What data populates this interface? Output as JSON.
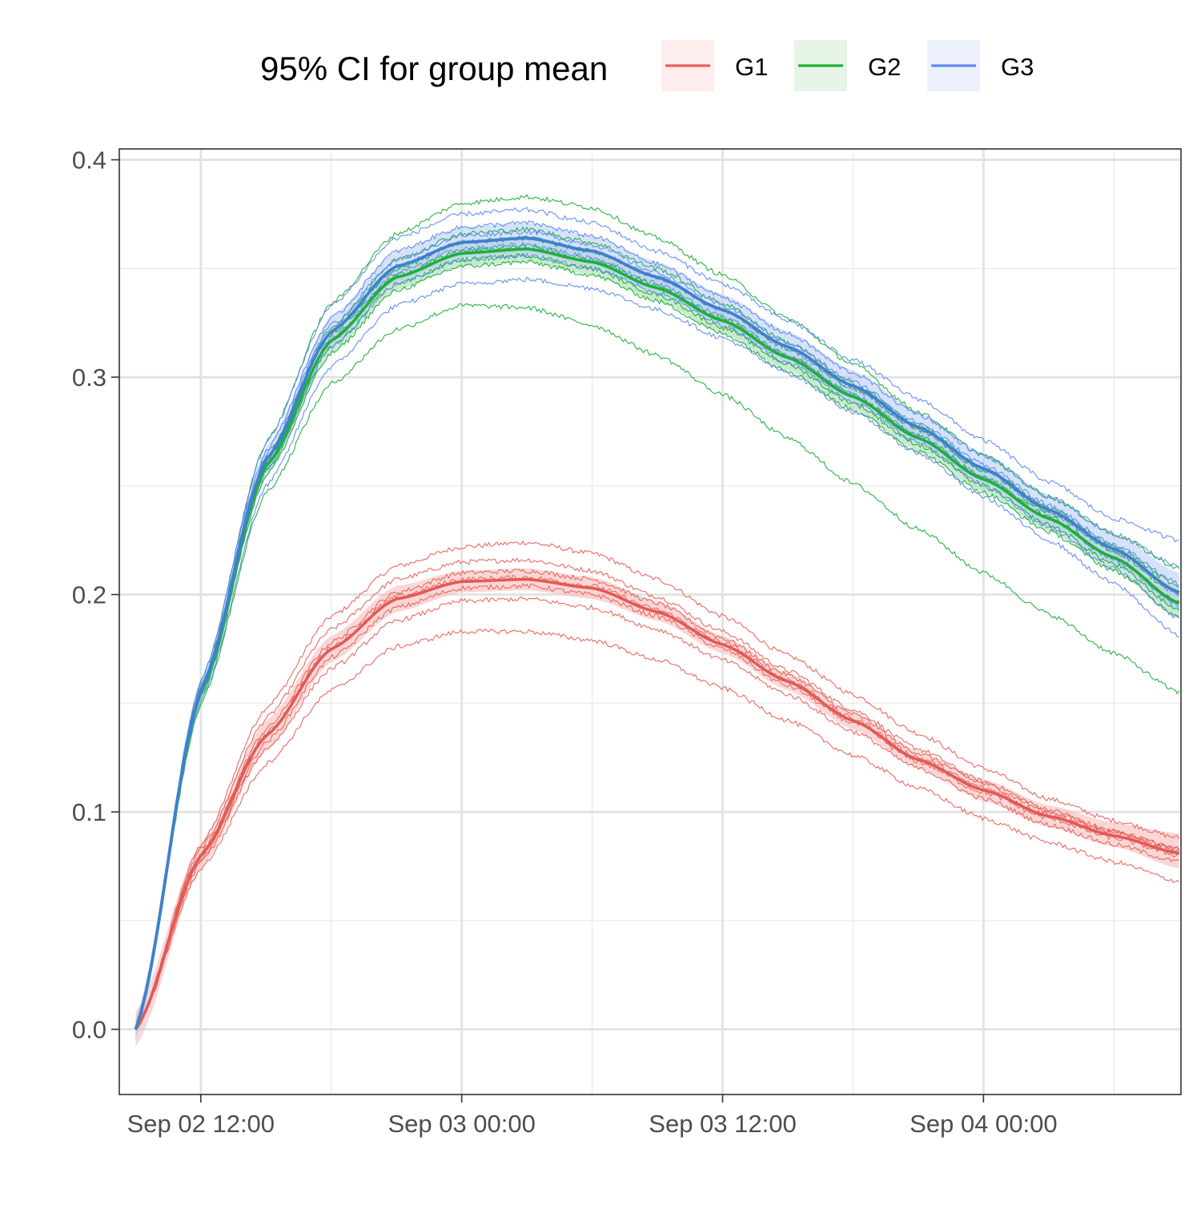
{
  "chart_data": {
    "type": "line",
    "title": "",
    "xlabel": "",
    "ylabel": "",
    "legend": {
      "title": "95% CI for group mean",
      "position": "top",
      "entries": [
        "G1",
        "G2",
        "G3"
      ]
    },
    "colors": {
      "G1": "#E8625B",
      "G2": "#1FAF3A",
      "G3": "#5E8BF0",
      "G1_band": "#F6B7B4",
      "G2_band": "#9FD9A8",
      "G3_band": "#B5C9F7",
      "G1_mean": "#E15A56",
      "G3_mean": "#3F7FD0"
    },
    "x_axis": {
      "type": "datetime",
      "range": [
        "2024-09-02 08:15",
        "2024-09-04 09:05"
      ],
      "tick_labels": [
        "Sep 02 12:00",
        "Sep 03 00:00",
        "Sep 03 12:00",
        "Sep 04 00:00"
      ],
      "tick_values": [
        "2024-09-02 12:00",
        "2024-09-03 00:00",
        "2024-09-03 12:00",
        "2024-09-04 00:00"
      ],
      "minor_ticks": [
        "2024-09-02 18:00",
        "2024-09-03 06:00",
        "2024-09-03 18:00",
        "2024-09-04 06:00"
      ]
    },
    "y_axis": {
      "range": [
        -0.03,
        0.405
      ],
      "tick_values": [
        0.0,
        0.1,
        0.2,
        0.3,
        0.4
      ],
      "tick_labels": [
        "0.0",
        "0.1",
        "0.2",
        "0.3",
        "0.4"
      ],
      "minor_ticks": [
        0.05,
        0.15,
        0.25,
        0.35
      ]
    },
    "grid": true,
    "x": [
      "2024-09-02 09:00",
      "2024-09-02 12:00",
      "2024-09-02 15:00",
      "2024-09-02 18:00",
      "2024-09-02 21:00",
      "2024-09-03 00:00",
      "2024-09-03 03:00",
      "2024-09-03 06:00",
      "2024-09-03 09:00",
      "2024-09-03 12:00",
      "2024-09-03 15:00",
      "2024-09-03 18:00",
      "2024-09-03 21:00",
      "2024-09-04 00:00",
      "2024-09-04 03:00",
      "2024-09-04 06:00",
      "2024-09-04 09:00"
    ],
    "series": [
      {
        "name": "G1",
        "mean": [
          0.0,
          0.08,
          0.135,
          0.175,
          0.198,
          0.206,
          0.207,
          0.203,
          0.192,
          0.177,
          0.16,
          0.142,
          0.124,
          0.11,
          0.098,
          0.089,
          0.081
        ],
        "ci_lower": [
          -0.008,
          0.074,
          0.128,
          0.169,
          0.192,
          0.201,
          0.202,
          0.198,
          0.188,
          0.173,
          0.156,
          0.138,
          0.12,
          0.105,
          0.093,
          0.084,
          0.074
        ],
        "ci_upper": [
          0.008,
          0.086,
          0.142,
          0.181,
          0.204,
          0.211,
          0.212,
          0.208,
          0.197,
          0.181,
          0.164,
          0.146,
          0.128,
          0.115,
          0.103,
          0.095,
          0.09
        ],
        "individuals": [
          [
            0.0,
            0.085,
            0.148,
            0.19,
            0.213,
            0.222,
            0.224,
            0.219,
            0.207,
            0.19,
            0.172,
            0.154,
            0.136,
            0.12,
            0.106,
            0.096,
            0.088
          ],
          [
            0.0,
            0.083,
            0.143,
            0.184,
            0.207,
            0.215,
            0.216,
            0.211,
            0.199,
            0.183,
            0.165,
            0.147,
            0.129,
            0.114,
            0.101,
            0.091,
            0.083
          ],
          [
            0.0,
            0.081,
            0.138,
            0.178,
            0.201,
            0.21,
            0.211,
            0.207,
            0.196,
            0.18,
            0.163,
            0.145,
            0.127,
            0.113,
            0.1,
            0.091,
            0.083
          ],
          [
            0.0,
            0.08,
            0.136,
            0.176,
            0.199,
            0.207,
            0.208,
            0.204,
            0.193,
            0.178,
            0.161,
            0.143,
            0.125,
            0.111,
            0.099,
            0.09,
            0.082
          ],
          [
            0.0,
            0.078,
            0.132,
            0.171,
            0.194,
            0.203,
            0.204,
            0.2,
            0.19,
            0.175,
            0.158,
            0.141,
            0.123,
            0.109,
            0.097,
            0.088,
            0.08
          ],
          [
            0.0,
            0.077,
            0.129,
            0.166,
            0.188,
            0.197,
            0.198,
            0.194,
            0.184,
            0.17,
            0.154,
            0.137,
            0.12,
            0.106,
            0.094,
            0.085,
            0.077
          ],
          [
            0.0,
            0.074,
            0.122,
            0.156,
            0.176,
            0.183,
            0.183,
            0.179,
            0.17,
            0.157,
            0.142,
            0.126,
            0.111,
            0.097,
            0.086,
            0.077,
            0.068
          ]
        ]
      },
      {
        "name": "G2",
        "mean": [
          0.0,
          0.155,
          0.259,
          0.317,
          0.346,
          0.357,
          0.359,
          0.353,
          0.341,
          0.326,
          0.309,
          0.291,
          0.272,
          0.253,
          0.235,
          0.217,
          0.196
        ],
        "ci_lower": [
          -0.004,
          0.151,
          0.254,
          0.311,
          0.34,
          0.351,
          0.353,
          0.347,
          0.335,
          0.32,
          0.303,
          0.285,
          0.266,
          0.247,
          0.229,
          0.211,
          0.189
        ],
        "ci_upper": [
          0.004,
          0.159,
          0.264,
          0.323,
          0.352,
          0.363,
          0.365,
          0.359,
          0.347,
          0.332,
          0.315,
          0.297,
          0.278,
          0.259,
          0.241,
          0.223,
          0.203
        ],
        "individuals": [
          [
            0.0,
            0.16,
            0.27,
            0.334,
            0.366,
            0.38,
            0.383,
            0.378,
            0.364,
            0.347,
            0.327,
            0.306,
            0.284,
            0.264,
            0.245,
            0.228,
            0.212
          ],
          [
            0.0,
            0.157,
            0.263,
            0.323,
            0.354,
            0.366,
            0.368,
            0.362,
            0.35,
            0.334,
            0.316,
            0.297,
            0.278,
            0.258,
            0.24,
            0.222,
            0.204
          ],
          [
            0.0,
            0.156,
            0.261,
            0.32,
            0.35,
            0.362,
            0.364,
            0.358,
            0.346,
            0.331,
            0.313,
            0.295,
            0.276,
            0.257,
            0.238,
            0.22,
            0.2
          ],
          [
            0.0,
            0.155,
            0.259,
            0.317,
            0.347,
            0.358,
            0.36,
            0.354,
            0.342,
            0.327,
            0.31,
            0.292,
            0.273,
            0.254,
            0.236,
            0.217,
            0.196
          ],
          [
            0.0,
            0.154,
            0.257,
            0.314,
            0.343,
            0.354,
            0.356,
            0.35,
            0.338,
            0.323,
            0.306,
            0.288,
            0.269,
            0.25,
            0.232,
            0.214,
            0.193
          ],
          [
            0.0,
            0.153,
            0.255,
            0.311,
            0.34,
            0.351,
            0.353,
            0.347,
            0.335,
            0.32,
            0.303,
            0.285,
            0.266,
            0.247,
            0.229,
            0.211,
            0.19
          ],
          [
            0.0,
            0.15,
            0.247,
            0.297,
            0.322,
            0.333,
            0.332,
            0.324,
            0.31,
            0.292,
            0.272,
            0.251,
            0.23,
            0.21,
            0.191,
            0.173,
            0.155
          ]
        ]
      },
      {
        "name": "G3",
        "mean": [
          0.0,
          0.156,
          0.262,
          0.321,
          0.351,
          0.362,
          0.364,
          0.358,
          0.346,
          0.331,
          0.314,
          0.296,
          0.277,
          0.258,
          0.239,
          0.221,
          0.201
        ],
        "ci_lower": [
          -0.005,
          0.151,
          0.256,
          0.314,
          0.344,
          0.355,
          0.357,
          0.351,
          0.339,
          0.324,
          0.307,
          0.289,
          0.27,
          0.251,
          0.232,
          0.214,
          0.192
        ],
        "ci_upper": [
          0.005,
          0.161,
          0.268,
          0.328,
          0.358,
          0.369,
          0.371,
          0.365,
          0.353,
          0.338,
          0.321,
          0.303,
          0.284,
          0.265,
          0.246,
          0.228,
          0.21
        ],
        "individuals": [
          [
            0.0,
            0.16,
            0.27,
            0.333,
            0.364,
            0.375,
            0.377,
            0.371,
            0.358,
            0.343,
            0.326,
            0.308,
            0.29,
            0.271,
            0.252,
            0.235,
            0.225
          ],
          [
            0.0,
            0.158,
            0.266,
            0.327,
            0.358,
            0.369,
            0.371,
            0.365,
            0.352,
            0.337,
            0.32,
            0.302,
            0.283,
            0.264,
            0.245,
            0.228,
            0.213
          ],
          [
            0.0,
            0.157,
            0.264,
            0.324,
            0.354,
            0.365,
            0.367,
            0.361,
            0.348,
            0.333,
            0.316,
            0.298,
            0.279,
            0.26,
            0.241,
            0.223,
            0.205
          ],
          [
            0.0,
            0.156,
            0.262,
            0.321,
            0.351,
            0.362,
            0.364,
            0.358,
            0.346,
            0.331,
            0.313,
            0.295,
            0.276,
            0.257,
            0.238,
            0.22,
            0.2
          ],
          [
            0.0,
            0.155,
            0.26,
            0.318,
            0.348,
            0.359,
            0.361,
            0.355,
            0.343,
            0.328,
            0.31,
            0.292,
            0.273,
            0.254,
            0.235,
            0.216,
            0.195
          ],
          [
            0.0,
            0.154,
            0.257,
            0.314,
            0.343,
            0.354,
            0.356,
            0.35,
            0.339,
            0.324,
            0.307,
            0.289,
            0.27,
            0.25,
            0.231,
            0.212,
            0.189
          ],
          [
            0.0,
            0.151,
            0.25,
            0.305,
            0.333,
            0.343,
            0.345,
            0.341,
            0.331,
            0.318,
            0.302,
            0.284,
            0.265,
            0.245,
            0.225,
            0.205,
            0.181
          ]
        ]
      }
    ]
  }
}
